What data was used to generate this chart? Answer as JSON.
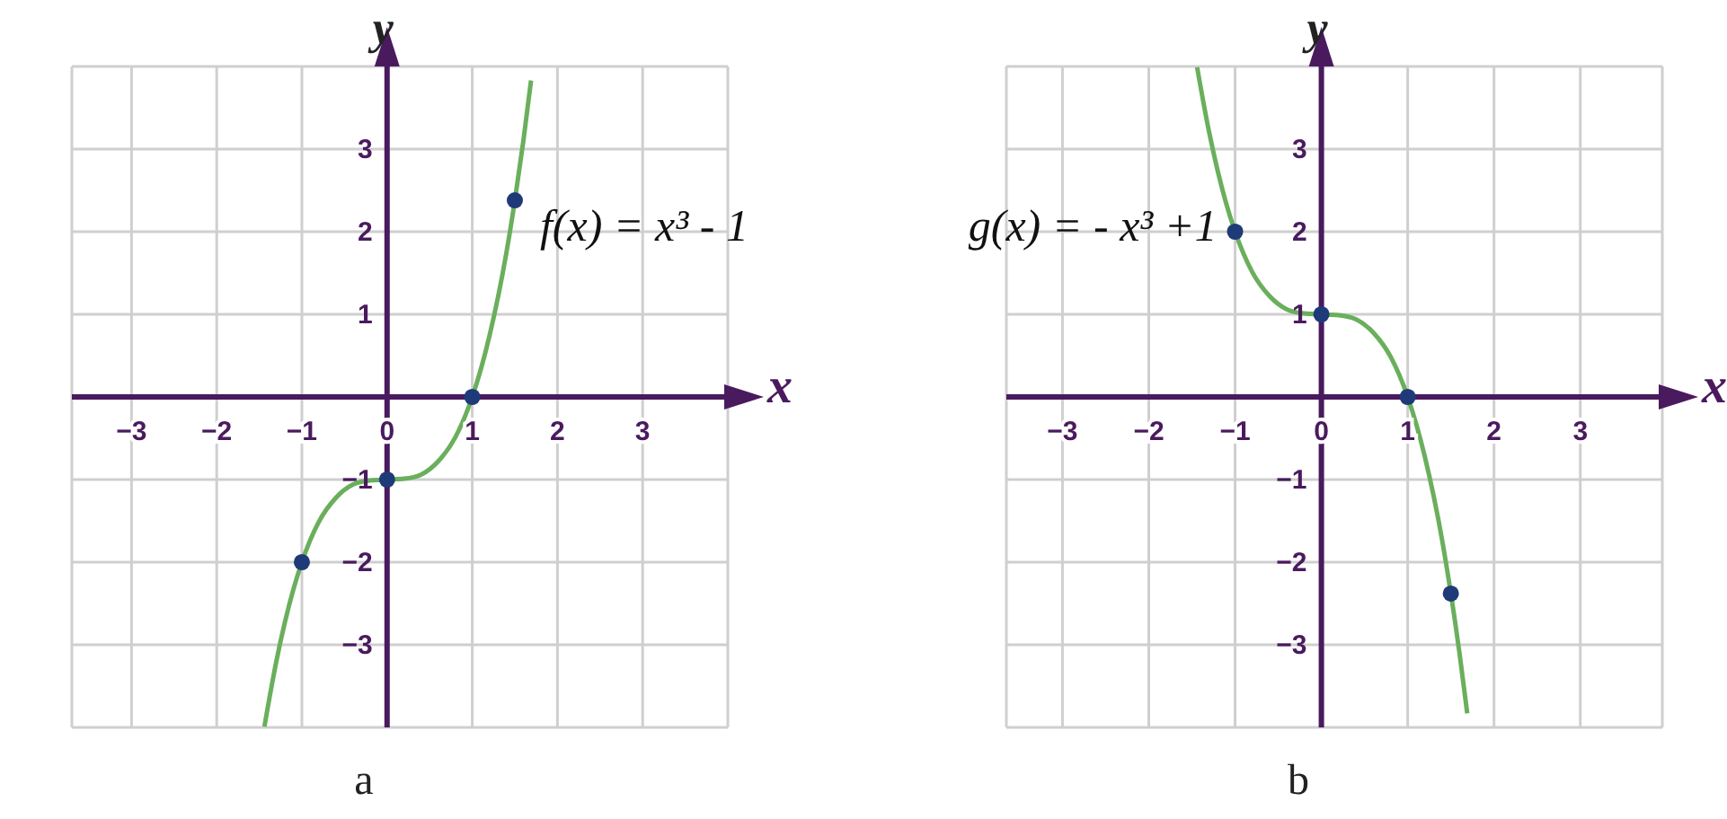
{
  "chart_data": [
    {
      "type": "line",
      "xlabel": "x",
      "ylabel": "y",
      "annotations": [
        "a"
      ],
      "xlim": [
        -3.7,
        4
      ],
      "ylim": [
        -4,
        4
      ],
      "xticks": [
        -3,
        -2,
        -1,
        0,
        1,
        2,
        3
      ],
      "yticks": [
        -3,
        -2,
        -1,
        1,
        2,
        3
      ],
      "grid": true,
      "series": [
        {
          "name": "f(x) = x³ - 1",
          "color": "#6aaf5c",
          "x": [
            -1.44,
            -1.3,
            -1.2,
            -1.1,
            -1,
            -0.8,
            -0.6,
            -0.4,
            -0.2,
            0,
            0.2,
            0.4,
            0.6,
            0.8,
            1,
            1.2,
            1.4,
            1.5,
            1.6,
            1.69
          ],
          "values": [
            -3.99,
            -3.2,
            -2.73,
            -2.33,
            -2,
            -1.51,
            -1.22,
            -1.06,
            -1.01,
            -1,
            -0.99,
            -0.94,
            -0.78,
            -0.49,
            0,
            0.73,
            1.74,
            2.38,
            3.1,
            3.83
          ]
        },
        {
          "type": "scatter",
          "color": "#1f3a78",
          "marker": "circle",
          "x": [
            -1,
            0,
            1,
            1.5
          ],
          "values": [
            -2,
            -1,
            0,
            2.38
          ]
        }
      ]
    },
    {
      "type": "line",
      "xlabel": "x",
      "ylabel": "y",
      "annotations": [
        "b"
      ],
      "xlim": [
        -3.65,
        3.95
      ],
      "ylim": [
        -4,
        4
      ],
      "xticks": [
        -3,
        -2,
        -1,
        0,
        1,
        2,
        3
      ],
      "yticks": [
        -3,
        -2,
        -1,
        1,
        2,
        3
      ],
      "grid": true,
      "series": [
        {
          "name": "g(x) = - x³ +1",
          "color": "#6aaf5c",
          "x": [
            -1.44,
            -1.3,
            -1.2,
            -1.1,
            -1,
            -0.8,
            -0.6,
            -0.4,
            -0.2,
            0,
            0.2,
            0.4,
            0.6,
            0.8,
            1,
            1.2,
            1.4,
            1.5,
            1.6,
            1.69
          ],
          "values": [
            3.99,
            3.2,
            2.73,
            2.33,
            2,
            1.51,
            1.22,
            1.06,
            1.01,
            1,
            0.99,
            0.94,
            0.78,
            0.49,
            0,
            -0.73,
            -1.74,
            -2.38,
            -3.1,
            -3.83
          ]
        },
        {
          "type": "scatter",
          "color": "#1f3a78",
          "marker": "circle",
          "x": [
            -1,
            0,
            1,
            1.5
          ],
          "values": [
            2,
            1,
            0,
            -2.38
          ]
        }
      ]
    }
  ]
}
